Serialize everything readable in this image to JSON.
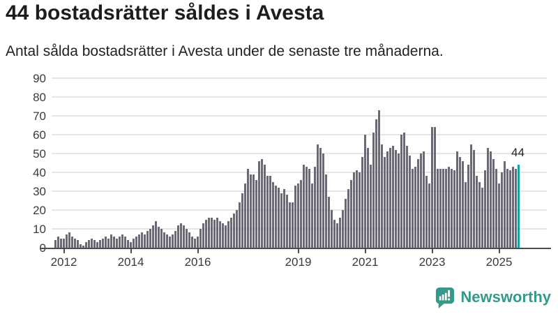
{
  "header": {
    "title": "44 bostadsrätter såldes i Avesta",
    "subtitle": "Antal sålda bostadsrätter i Avesta under de senaste tre månaderna."
  },
  "annotation": {
    "last_value_label": "44"
  },
  "branding": {
    "name": "Newsworthy",
    "icon": "newsworthy-bubble-chart-icon",
    "color": "#34998a"
  },
  "colors": {
    "bar": "#6a6a72",
    "highlight": "#0fa3a3",
    "grid": "#e6e6e6",
    "axis": "#4d4d4d",
    "tick_label": "#3b3b3b",
    "title_text": "#1d1d1d"
  },
  "chart_data": {
    "type": "bar",
    "title": "44 bostadsrätter såldes i Avesta",
    "subtitle": "Antal sålda bostadsrätter i Avesta under de senaste tre månaderna.",
    "ylabel": "",
    "xlabel": "",
    "ylim": [
      0,
      90
    ],
    "grid": "horizontal",
    "legend": "none",
    "frequency": "monthly",
    "start_month": "2011-10",
    "y_ticks": [
      0,
      10,
      20,
      30,
      40,
      50,
      60,
      70,
      80,
      90
    ],
    "x_ticks": [
      "2012",
      "2014",
      "2016",
      "2019",
      "2021",
      "2023",
      "2025"
    ],
    "highlight_last": true,
    "last_value": 44,
    "values": [
      4,
      6,
      5,
      5,
      7,
      8,
      6,
      5,
      4,
      2,
      1,
      3,
      4,
      5,
      4,
      3,
      4,
      5,
      6,
      5,
      7,
      6,
      5,
      6,
      7,
      6,
      4,
      3,
      5,
      6,
      7,
      8,
      7,
      9,
      10,
      12,
      14,
      11,
      10,
      8,
      7,
      6,
      7,
      9,
      12,
      13,
      12,
      10,
      8,
      6,
      5,
      6,
      10,
      13,
      15,
      16,
      16,
      15,
      16,
      14,
      13,
      12,
      14,
      16,
      18,
      20,
      24,
      29,
      34,
      42,
      39,
      39,
      36,
      46,
      47,
      44,
      38,
      38,
      35,
      33,
      32,
      29,
      31,
      28,
      24,
      24,
      33,
      34,
      36,
      44,
      43,
      42,
      34,
      43,
      55,
      53,
      50,
      39,
      27,
      20,
      15,
      13,
      16,
      20,
      26,
      31,
      36,
      40,
      41,
      40,
      48,
      60,
      53,
      44,
      61,
      68,
      73,
      55,
      48,
      51,
      53,
      54,
      52,
      50,
      60,
      61,
      54,
      49,
      42,
      43,
      47,
      50,
      51,
      38,
      34,
      64,
      64,
      42,
      42,
      42,
      42,
      43,
      42,
      41,
      51,
      48,
      46,
      35,
      44,
      55,
      52,
      38,
      35,
      32,
      41,
      53,
      51,
      47,
      42,
      34,
      40,
      46,
      42,
      41,
      43,
      42,
      44
    ]
  }
}
